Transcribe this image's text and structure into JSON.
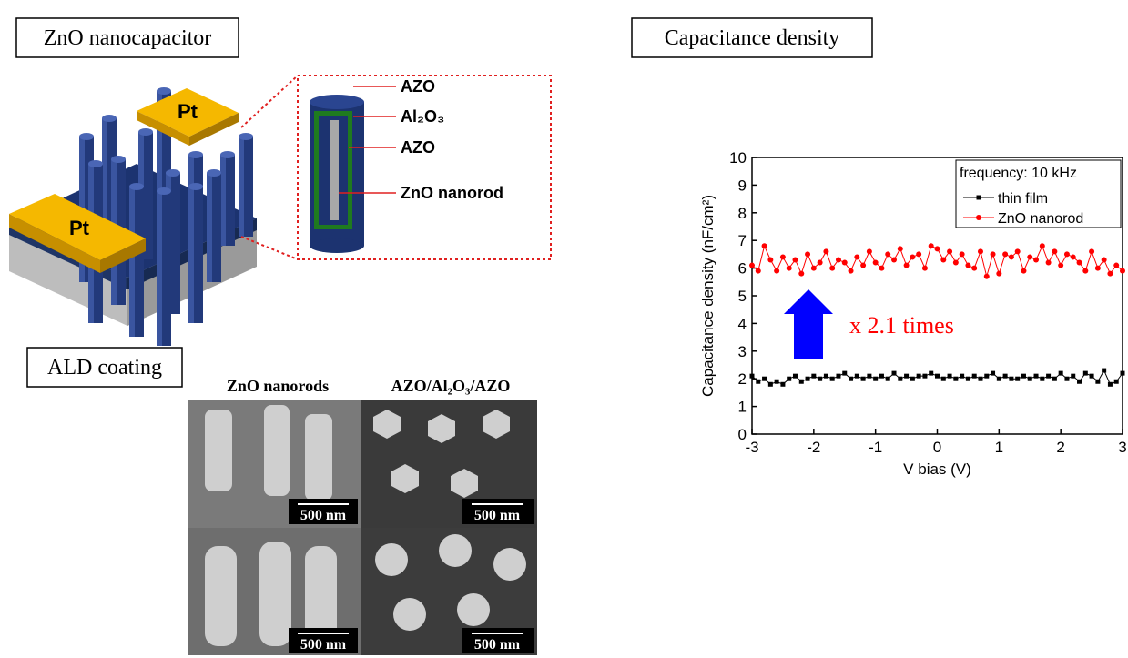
{
  "panels": {
    "nanocapacitor": {
      "title": "ZnO nanocapacitor",
      "pt_labels": [
        "Pt",
        "Pt"
      ],
      "layers": [
        "AZO",
        "Al₂O₃",
        "AZO",
        "ZnO nanorod"
      ]
    },
    "ald": {
      "title": "ALD coating",
      "columns": [
        "ZnO nanorods",
        "AZO/Al₂O₃/AZO"
      ],
      "scale_bars": [
        "500 nm",
        "500 nm",
        "500 nm",
        "500 nm"
      ]
    },
    "capacitance_title": "Capacitance density"
  },
  "chart_data": {
    "type": "line",
    "xlabel": "V bias (V)",
    "ylabel": "Capacitance density (nF/cm²)",
    "x": [
      -3,
      -2.9,
      -2.8,
      -2.7,
      -2.6,
      -2.5,
      -2.4,
      -2.3,
      -2.2,
      -2.1,
      -2,
      -1.9,
      -1.8,
      -1.7,
      -1.6,
      -1.5,
      -1.4,
      -1.3,
      -1.2,
      -1.1,
      -1,
      -0.9,
      -0.8,
      -0.7,
      -0.6,
      -0.5,
      -0.4,
      -0.3,
      -0.2,
      -0.1,
      0,
      0.1,
      0.2,
      0.3,
      0.4,
      0.5,
      0.6,
      0.7,
      0.8,
      0.9,
      1,
      1.1,
      1.2,
      1.3,
      1.4,
      1.5,
      1.6,
      1.7,
      1.8,
      1.9,
      2,
      2.1,
      2.2,
      2.3,
      2.4,
      2.5,
      2.6,
      2.7,
      2.8,
      2.9,
      3
    ],
    "series": [
      {
        "name": "thin film",
        "color": "#000000",
        "marker": "square",
        "values": [
          2.1,
          1.9,
          2.0,
          1.8,
          1.9,
          1.8,
          2.0,
          2.1,
          1.9,
          2.0,
          2.1,
          2.0,
          2.1,
          2.0,
          2.1,
          2.2,
          2.0,
          2.1,
          2.0,
          2.1,
          2.0,
          2.1,
          2.0,
          2.2,
          2.0,
          2.1,
          2.0,
          2.1,
          2.1,
          2.2,
          2.1,
          2.0,
          2.1,
          2.0,
          2.1,
          2.0,
          2.1,
          2.0,
          2.1,
          2.2,
          2.0,
          2.1,
          2.0,
          2.0,
          2.1,
          2.0,
          2.1,
          2.0,
          2.1,
          2.0,
          2.2,
          2.0,
          2.1,
          1.9,
          2.2,
          2.1,
          1.9,
          2.3,
          1.8,
          1.9,
          2.2
        ]
      },
      {
        "name": "ZnO nanorod",
        "color": "#ff0000",
        "marker": "circle",
        "values": [
          6.1,
          5.9,
          6.8,
          6.3,
          5.9,
          6.4,
          6.0,
          6.3,
          5.8,
          6.5,
          6.0,
          6.2,
          6.6,
          6.0,
          6.3,
          6.2,
          5.9,
          6.4,
          6.1,
          6.6,
          6.2,
          6.0,
          6.5,
          6.3,
          6.7,
          6.1,
          6.4,
          6.5,
          6.0,
          6.8,
          6.7,
          6.3,
          6.6,
          6.2,
          6.5,
          6.1,
          6.0,
          6.6,
          5.7,
          6.5,
          5.8,
          6.5,
          6.4,
          6.6,
          5.9,
          6.4,
          6.3,
          6.8,
          6.2,
          6.6,
          6.1,
          6.5,
          6.4,
          6.2,
          5.9,
          6.6,
          6.0,
          6.3,
          5.8,
          6.1,
          5.9
        ]
      }
    ],
    "xlim": [
      -3,
      3
    ],
    "ylim": [
      0,
      10
    ],
    "xticks": [
      -3,
      -2,
      -1,
      0,
      1,
      2,
      3
    ],
    "yticks": [
      0,
      1,
      2,
      3,
      4,
      5,
      6,
      7,
      8,
      9,
      10
    ],
    "legend_title": "frequency: 10 kHz",
    "legend": "upper right",
    "annotation": "x 2.1 times",
    "annotation_color": "#ff0000"
  }
}
